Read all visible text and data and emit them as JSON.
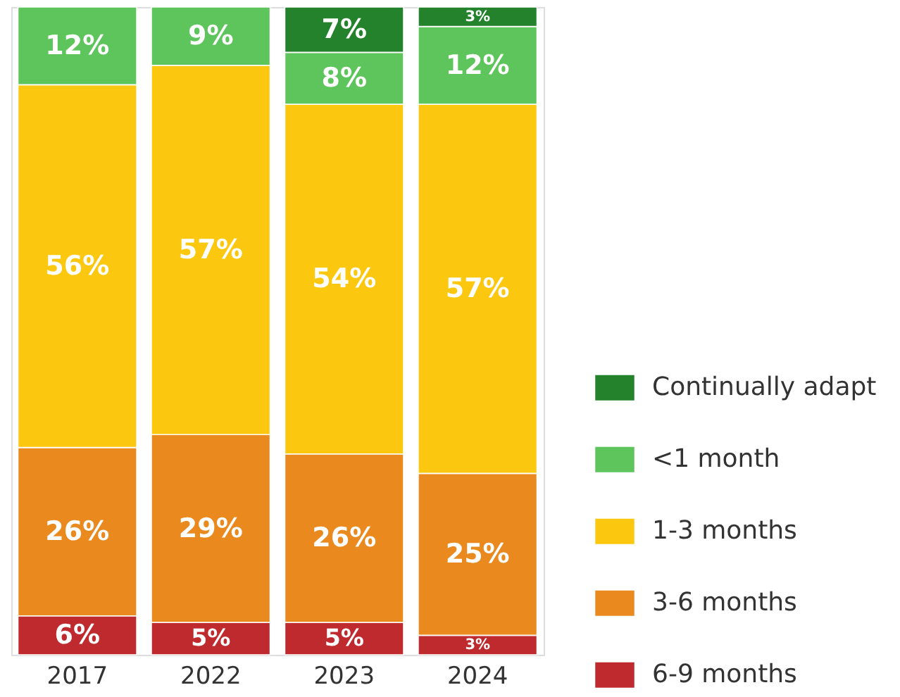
{
  "chart_data": {
    "type": "bar",
    "stacked": true,
    "categories": [
      "2017",
      "2022",
      "2023",
      "2024"
    ],
    "series": [
      {
        "name": "6-9 months",
        "color": "#be2a2d",
        "values": [
          6,
          5,
          5,
          3
        ],
        "value_labels": [
          "6%",
          "5%",
          "5%",
          "3%"
        ]
      },
      {
        "name": "3-6 months",
        "color": "#ea8a1e",
        "values": [
          26,
          29,
          26,
          25
        ],
        "value_labels": [
          "26%",
          "29%",
          "26%",
          "25%"
        ]
      },
      {
        "name": "1-3 months",
        "color": "#fcc80f",
        "values": [
          56,
          57,
          54,
          57
        ],
        "value_labels": [
          "56%",
          "57%",
          "54%",
          "57%"
        ]
      },
      {
        "name": "<1 month",
        "color": "#5ec55c",
        "values": [
          12,
          9,
          8,
          12
        ],
        "value_labels": [
          "12%",
          "9%",
          "8%",
          "12%"
        ]
      },
      {
        "name": "Continually adapt",
        "color": "#23822b",
        "values": [
          null,
          null,
          7,
          3
        ],
        "value_labels": [
          null,
          null,
          "7%",
          "3%"
        ]
      }
    ],
    "legend": "right",
    "tick_labels": "x"
  }
}
